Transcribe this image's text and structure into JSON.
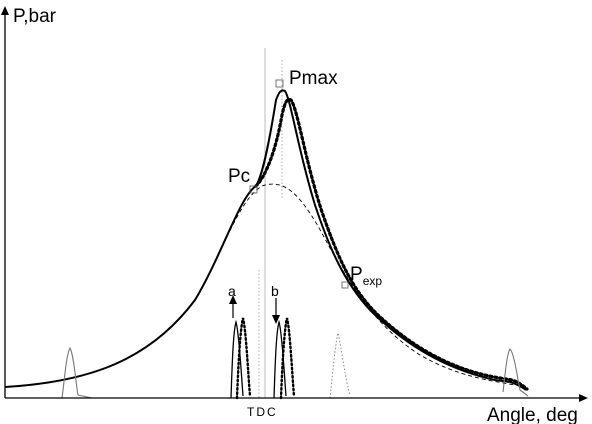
{
  "y_axis_label": "P,bar",
  "x_axis_label": "Angle, deg",
  "tdc_label": "TDC",
  "points": {
    "pmax": "Pmax",
    "pc": "Pc",
    "pexp_main": "P",
    "pexp_sub": "exp"
  },
  "markers": {
    "a": "a",
    "b": "b"
  },
  "colors": {
    "ink": "#000000",
    "guide": "#b8b8b8",
    "faint": "#808080"
  }
}
